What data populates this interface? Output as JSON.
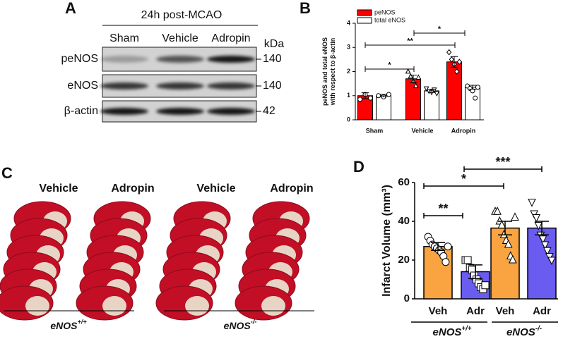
{
  "blot": {
    "label": "A",
    "title": "24h post-MCAO",
    "lanes": [
      "Sham",
      "Vehicle",
      "Adropin"
    ],
    "unit": "kDa",
    "rows": [
      {
        "name": "peNOS",
        "kda": 140
      },
      {
        "name": "eNOS",
        "kda": 140
      },
      {
        "name": "β-actin",
        "kda": 42
      }
    ]
  },
  "slices": {
    "label": "C",
    "columns": [
      "Vehicle",
      "Adropin",
      "Vehicle",
      "Adropin"
    ],
    "genotypes": [
      {
        "base": "eNOS",
        "sup": "+/+"
      },
      {
        "base": "eNOS",
        "sup": "-/-"
      }
    ]
  },
  "chart_data": [
    {
      "type": "bar",
      "label": "B",
      "ylabel": [
        "peNOS and total eNOS",
        "with respect to β-actin"
      ],
      "categories": [
        "Sham",
        "Vehicle",
        "Adropin"
      ],
      "series": [
        {
          "name": "peNOS",
          "color": "#ff0000",
          "values": [
            1.0,
            1.7,
            2.4
          ],
          "errors": [
            0.12,
            0.15,
            0.22
          ],
          "points": [
            [
              0.85,
              1.05,
              0.9
            ],
            [
              2.0,
              1.8,
              1.6,
              1.4,
              1.75
            ],
            [
              2.8,
              2.5,
              2.3,
              2.0,
              2.4
            ]
          ]
        },
        {
          "name": "total eNOS",
          "color": "#ffffff",
          "values": [
            1.0,
            1.2,
            1.35
          ],
          "errors": [
            0.05,
            0.07,
            0.08
          ],
          "points": [
            [
              1.0,
              0.95,
              1.05
            ],
            [
              1.3,
              1.2,
              1.15,
              1.25,
              1.1
            ],
            [
              1.4,
              1.3,
              1.2,
              0.9,
              1.35
            ]
          ]
        }
      ],
      "ylim": [
        0,
        4
      ],
      "yticks": [
        0,
        1,
        2,
        3,
        4
      ],
      "annotations": [
        "*",
        "**",
        "*"
      ]
    },
    {
      "type": "bar",
      "label": "D",
      "ylabel": "Infarct Volume (mm³)",
      "categories": [
        "Veh",
        "Adr",
        "Veh",
        "Adr"
      ],
      "colors": [
        "#f9a441",
        "#6a5cf0",
        "#f9a441",
        "#6a5cf0"
      ],
      "values": [
        27,
        14,
        36.5,
        36.5
      ],
      "errors": [
        2,
        3.5,
        3.5,
        3.5
      ],
      "points": [
        [
          32,
          30,
          28,
          27,
          26,
          25,
          24,
          22,
          19,
          27
        ],
        [
          20,
          20,
          16,
          15,
          12,
          10,
          8,
          6,
          5,
          7
        ],
        [
          45,
          45,
          40,
          38,
          33,
          30,
          28,
          22,
          20,
          42
        ],
        [
          50,
          44,
          42,
          38,
          33,
          31,
          28,
          25,
          22,
          20
        ]
      ],
      "groups": [
        {
          "base": "eNOS",
          "sup": "+/+"
        },
        {
          "base": "eNOS",
          "sup": "-/-"
        }
      ],
      "ylim": [
        0,
        60
      ],
      "yticks": [
        0,
        20,
        40,
        60
      ],
      "annotations": [
        "**",
        "*",
        "***"
      ]
    }
  ]
}
